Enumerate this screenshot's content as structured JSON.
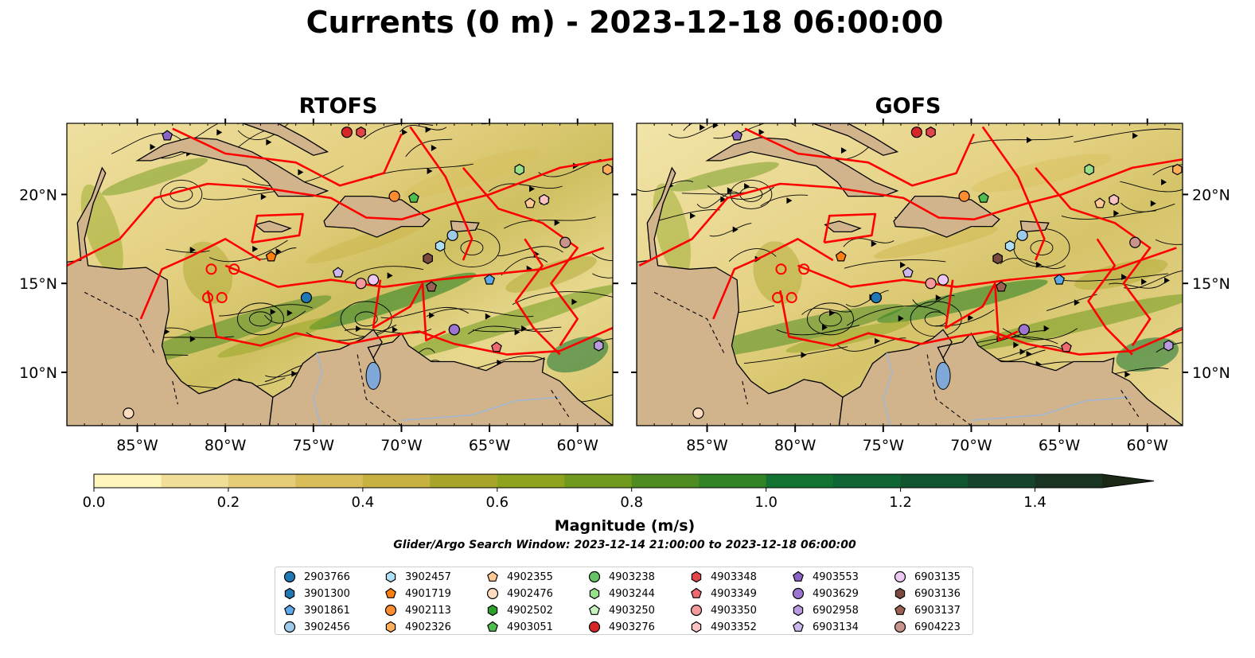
{
  "title": "Currents (0 m) - 2023-12-18 06:00:00",
  "panels": [
    {
      "title": "RTOFS"
    },
    {
      "title": "GOFS"
    }
  ],
  "axes": {
    "lon_ticks": [
      "85°W",
      "80°W",
      "75°W",
      "70°W",
      "65°W",
      "60°W"
    ],
    "lat_ticks": [
      "20°N",
      "15°N",
      "10°N"
    ]
  },
  "colorbar": {
    "label": "Magnitude (m/s)",
    "ticks": [
      "0.0",
      "0.2",
      "0.4",
      "0.6",
      "0.8",
      "1.0",
      "1.2",
      "1.4"
    ],
    "range": [
      0,
      1.6
    ],
    "extend": "max",
    "colors": [
      "#fff6bd",
      "#f1df97",
      "#e5cd78",
      "#d8bd58",
      "#c7b140",
      "#a9a52a",
      "#8fa31f",
      "#6f9a1e",
      "#4e8c22",
      "#318326",
      "#127232",
      "#0f6533",
      "#0e5530",
      "#15432b",
      "#1a3422",
      "#1b2815"
    ]
  },
  "search_window": "Glider/Argo Search Window: 2023-12-14 21:00:00 to 2023-12-18 06:00:00",
  "colors": {
    "land": "#d2b48c",
    "track": "#ff0000",
    "lake": "#7fa8d8"
  },
  "legend": [
    {
      "id": "2903766",
      "marker": "circle",
      "color": "#1f77b4"
    },
    {
      "id": "3901300",
      "marker": "hexagon",
      "color": "#1f77b4"
    },
    {
      "id": "3901861",
      "marker": "pentagon",
      "color": "#5ea9e8"
    },
    {
      "id": "3902456",
      "marker": "circle",
      "color": "#9ecae9"
    },
    {
      "id": "3902457",
      "marker": "hexagon",
      "color": "#aee0f5"
    },
    {
      "id": "4901719",
      "marker": "pentagon",
      "color": "#ff7f0e"
    },
    {
      "id": "4902113",
      "marker": "circle",
      "color": "#ff8c2f"
    },
    {
      "id": "4902326",
      "marker": "hexagon",
      "color": "#ffae5a"
    },
    {
      "id": "4902355",
      "marker": "pentagon",
      "color": "#ffc993"
    },
    {
      "id": "4902476",
      "marker": "circle",
      "color": "#ffdcbf"
    },
    {
      "id": "4902502",
      "marker": "hexagon",
      "color": "#2ca02c"
    },
    {
      "id": "4903051",
      "marker": "pentagon",
      "color": "#4fbe4f"
    },
    {
      "id": "4903238",
      "marker": "circle",
      "color": "#66c466"
    },
    {
      "id": "4903244",
      "marker": "hexagon",
      "color": "#98df8a"
    },
    {
      "id": "4903250",
      "marker": "pentagon",
      "color": "#c8f1c0"
    },
    {
      "id": "4903276",
      "marker": "circle",
      "color": "#d62728"
    },
    {
      "id": "4903348",
      "marker": "hexagon",
      "color": "#e0454a"
    },
    {
      "id": "4903349",
      "marker": "pentagon",
      "color": "#ee6a70"
    },
    {
      "id": "4903350",
      "marker": "circle",
      "color": "#f4999c"
    },
    {
      "id": "4903352",
      "marker": "hexagon",
      "color": "#f9c3c3"
    },
    {
      "id": "4903553",
      "marker": "pentagon",
      "color": "#8a63c7"
    },
    {
      "id": "4903629",
      "marker": "circle",
      "color": "#9d74d0"
    },
    {
      "id": "6902958",
      "marker": "hexagon",
      "color": "#b99be0"
    },
    {
      "id": "6903134",
      "marker": "pentagon",
      "color": "#ccb8ee"
    },
    {
      "id": "6903135",
      "marker": "circle",
      "color": "#efc7f5"
    },
    {
      "id": "6903136",
      "marker": "hexagon",
      "color": "#7a4a3e"
    },
    {
      "id": "6903137",
      "marker": "pentagon",
      "color": "#9b6154"
    },
    {
      "id": "6904223",
      "marker": "circle",
      "color": "#c7938a"
    }
  ],
  "floats": [
    {
      "id": "2903766",
      "lon": -75.4,
      "lat": 14.2
    },
    {
      "id": "3901300",
      "lon": -68.5,
      "lat": 16.4
    },
    {
      "id": "3901861",
      "lon": -65.0,
      "lat": 15.2
    },
    {
      "id": "3902456",
      "lon": -67.1,
      "lat": 17.7
    },
    {
      "id": "3902457",
      "lon": -67.8,
      "lat": 17.1
    },
    {
      "id": "4901719",
      "lon": -77.4,
      "lat": 16.5
    },
    {
      "id": "4902113",
      "lon": -70.4,
      "lat": 19.9
    },
    {
      "id": "4902326",
      "lon": -58.3,
      "lat": 21.4
    },
    {
      "id": "4902355",
      "lon": -62.7,
      "lat": 19.5
    },
    {
      "id": "4902476",
      "lon": -85.5,
      "lat": 7.7
    },
    {
      "id": "4902502",
      "lon": -63.3,
      "lat": 21.4
    },
    {
      "id": "4903051",
      "lon": -69.3,
      "lat": 19.8
    },
    {
      "id": "4903238",
      "lon": -67.0,
      "lat": 12.4
    },
    {
      "id": "4903244",
      "lon": -63.3,
      "lat": 21.4
    },
    {
      "id": "4903250",
      "lon": -61.9,
      "lat": 19.7
    },
    {
      "id": "4903276",
      "lon": -73.1,
      "lat": 23.5
    },
    {
      "id": "4903348",
      "lon": -72.3,
      "lat": 23.5
    },
    {
      "id": "4903349",
      "lon": -64.6,
      "lat": 11.4
    },
    {
      "id": "4903350",
      "lon": -72.3,
      "lat": 15.0
    },
    {
      "id": "4903352",
      "lon": -61.9,
      "lat": 19.7
    },
    {
      "id": "4903553",
      "lon": -83.3,
      "lat": 23.3
    },
    {
      "id": "4903629",
      "lon": -67.0,
      "lat": 12.4
    },
    {
      "id": "6902958",
      "lon": -58.8,
      "lat": 11.5
    },
    {
      "id": "6903134",
      "lon": -73.6,
      "lat": 15.6
    },
    {
      "id": "6903135",
      "lon": -71.6,
      "lat": 15.2
    },
    {
      "id": "6903136",
      "lon": -68.5,
      "lat": 16.4
    },
    {
      "id": "6903137",
      "lon": -68.3,
      "lat": 14.8
    },
    {
      "id": "6904223",
      "lon": -60.7,
      "lat": 17.3
    }
  ]
}
